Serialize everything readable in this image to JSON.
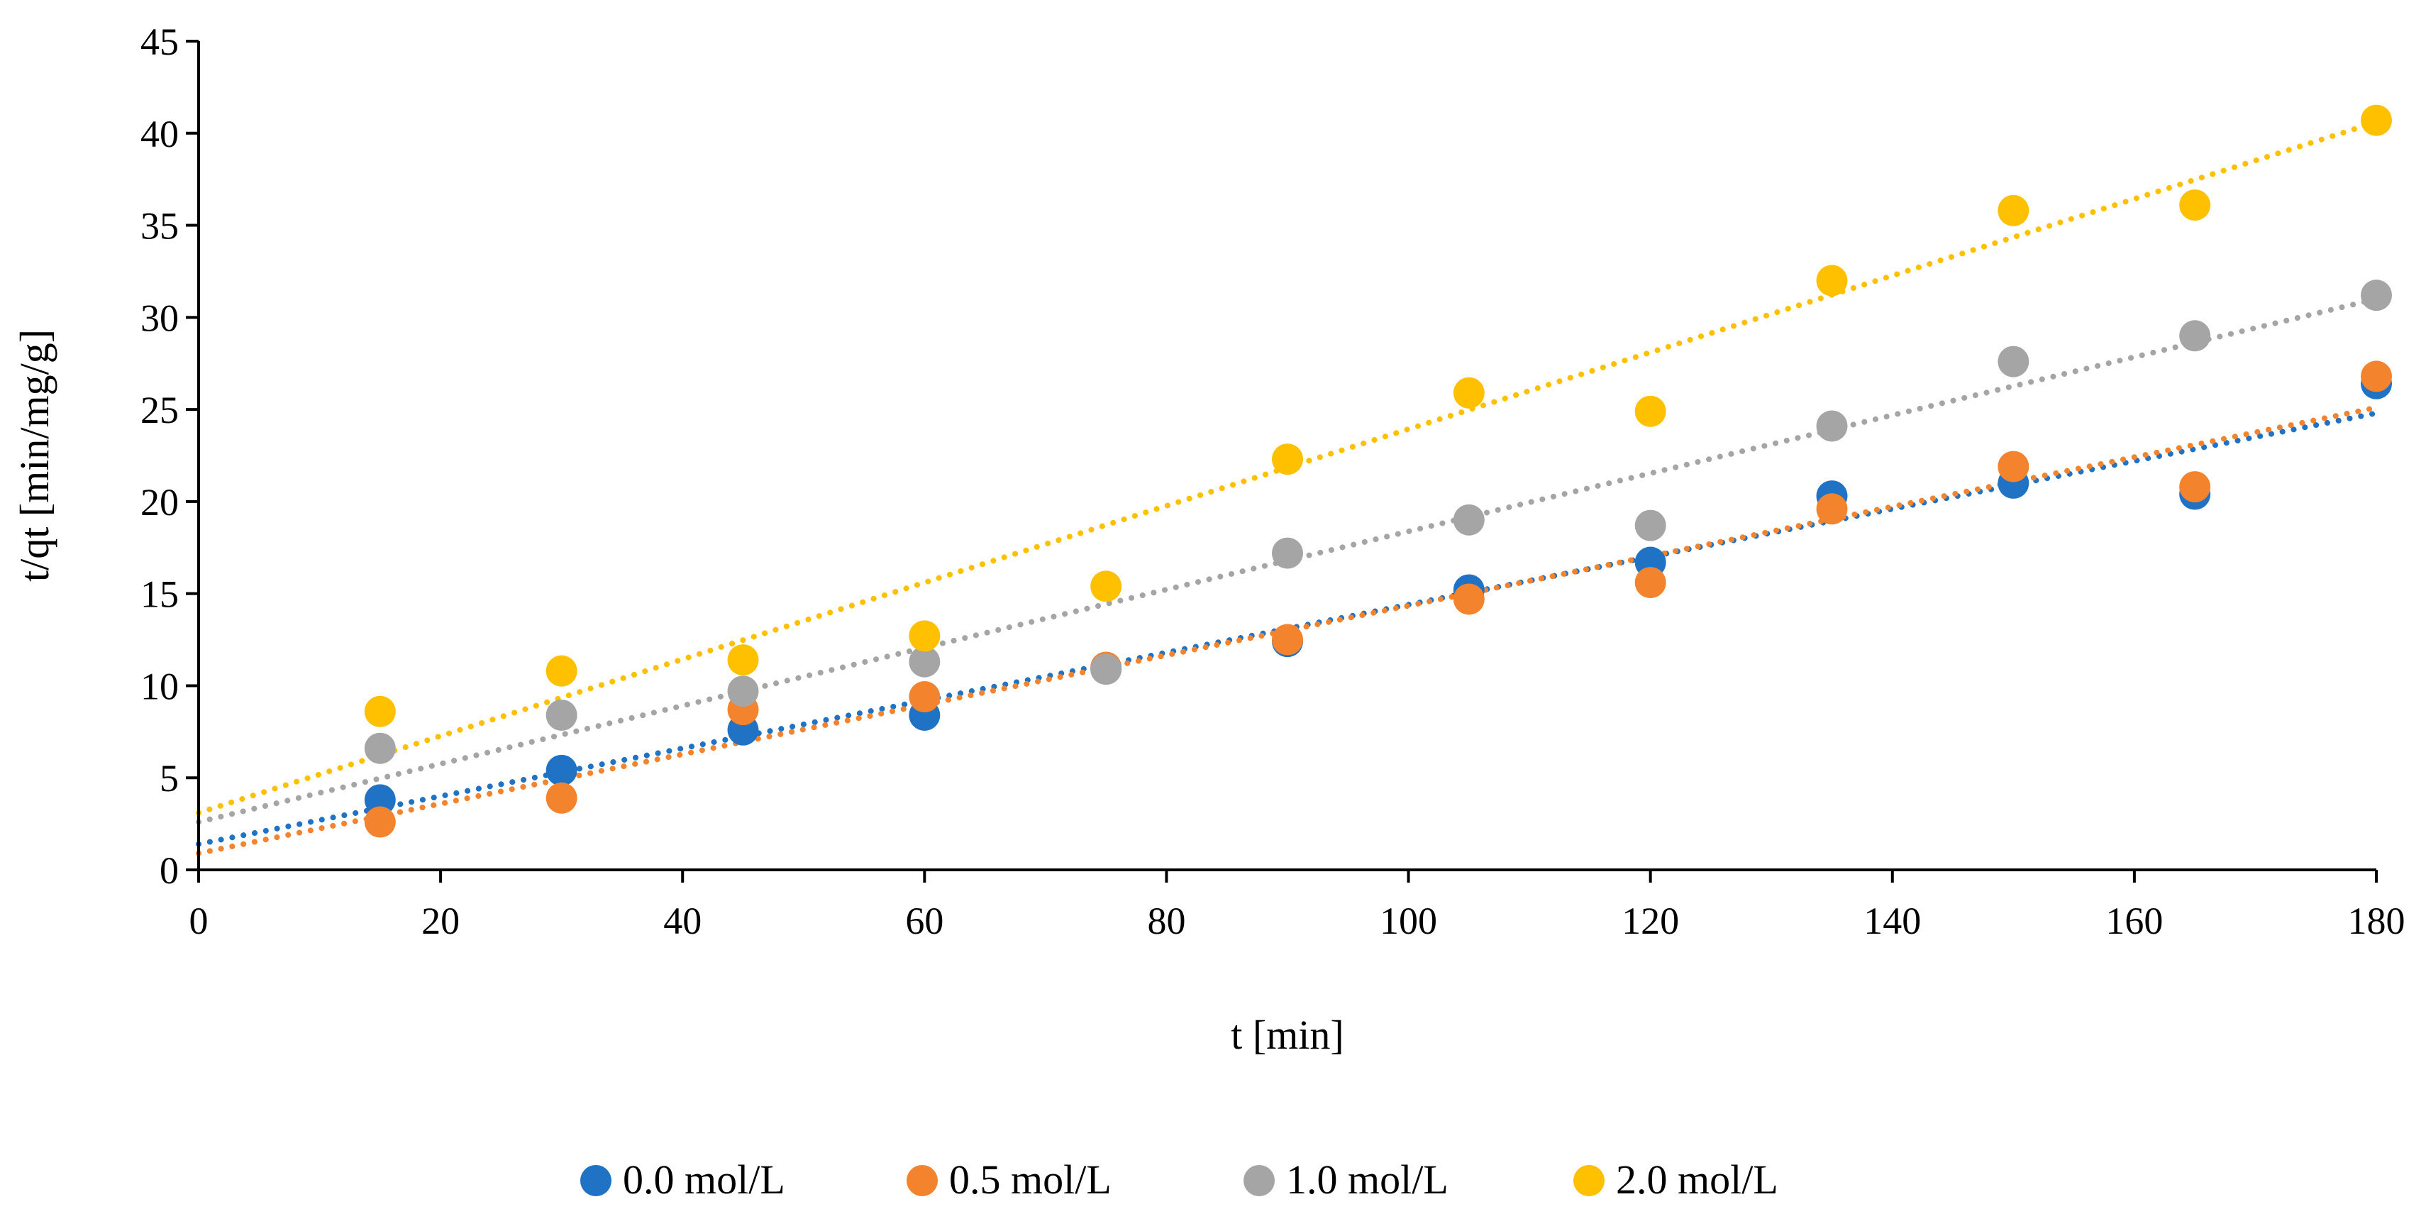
{
  "chart_data": {
    "type": "scatter",
    "title": "",
    "xlabel": "t [min]",
    "ylabel": "t/qt [min/mg/g]",
    "xlim": [
      0,
      180
    ],
    "ylim": [
      0,
      45
    ],
    "xticks": [
      0,
      20,
      40,
      60,
      80,
      100,
      120,
      140,
      160,
      180
    ],
    "yticks": [
      0,
      5,
      10,
      15,
      20,
      25,
      30,
      35,
      40,
      45
    ],
    "grid": false,
    "legend_position": "bottom",
    "trendline_style": "dotted linear",
    "series": [
      {
        "name": "0.0 mol/L",
        "color": "#2072C4",
        "x": [
          15,
          30,
          45,
          60,
          75,
          90,
          105,
          120,
          135,
          150,
          165,
          180
        ],
        "y": [
          3.8,
          5.4,
          7.6,
          8.4,
          10.9,
          12.4,
          15.2,
          16.7,
          20.3,
          21.0,
          20.4,
          26.4
        ],
        "trend": [
          1.4,
          24.8
        ]
      },
      {
        "name": "0.5 mol/L",
        "color": "#F4832D",
        "x": [
          15,
          30,
          45,
          60,
          75,
          90,
          105,
          120,
          135,
          150,
          165,
          180
        ],
        "y": [
          2.6,
          3.9,
          8.7,
          9.4,
          11.0,
          12.5,
          14.7,
          15.6,
          19.6,
          21.9,
          20.8,
          26.8
        ],
        "trend": [
          0.9,
          25.1
        ]
      },
      {
        "name": "1.0 mol/L",
        "color": "#A5A5A5",
        "x": [
          15,
          30,
          45,
          60,
          75,
          90,
          105,
          120,
          135,
          150,
          165,
          180
        ],
        "y": [
          6.6,
          8.4,
          9.7,
          11.3,
          10.9,
          17.2,
          19.0,
          18.7,
          24.1,
          27.6,
          29.0,
          31.2
        ],
        "trend": [
          2.6,
          31.0
        ]
      },
      {
        "name": "2.0 mol/L",
        "color": "#FFC000",
        "x": [
          15,
          30,
          45,
          60,
          75,
          90,
          105,
          120,
          135,
          150,
          165,
          180
        ],
        "y": [
          8.6,
          10.8,
          11.4,
          12.7,
          15.4,
          22.3,
          25.9,
          24.9,
          32.0,
          35.8,
          36.1,
          40.7
        ],
        "trend": [
          3.1,
          40.6
        ]
      }
    ]
  }
}
